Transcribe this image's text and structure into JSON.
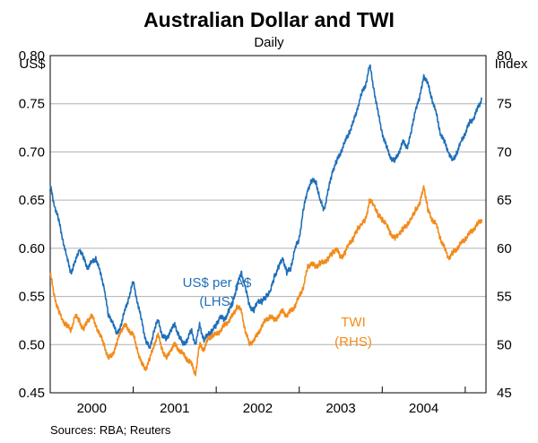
{
  "chart_data": {
    "type": "line",
    "title": "Australian Dollar and TWI",
    "subtitle": "Daily",
    "left_axis_label": "US$",
    "right_axis_label": "Index",
    "left_axis": {
      "ylim": [
        0.45,
        0.8
      ],
      "ticks": [
        "0.45",
        "0.50",
        "0.55",
        "0.60",
        "0.65",
        "0.70",
        "0.75",
        "0.80"
      ]
    },
    "right_axis": {
      "ylim": [
        45,
        80
      ],
      "ticks": [
        "45",
        "50",
        "55",
        "60",
        "65",
        "70",
        "75",
        "80"
      ]
    },
    "x_axis": {
      "range": [
        1999.5,
        2004.75
      ],
      "labels": [
        "2000",
        "2001",
        "2002",
        "2003",
        "2004"
      ],
      "label_positions": [
        2000,
        2001,
        2002,
        2003,
        2004
      ],
      "tick_positions": [
        2000.5,
        2001.5,
        2002.5,
        2003.5,
        2004.5
      ]
    },
    "grid": true,
    "series": [
      {
        "name": "US$ per A$",
        "axis": "left",
        "color": "#1f6fb8",
        "x": [
          1999.5,
          1999.55,
          1999.6,
          1999.65,
          1999.7,
          1999.75,
          1999.8,
          1999.85,
          1999.9,
          1999.95,
          2000.0,
          2000.05,
          2000.1,
          2000.15,
          2000.2,
          2000.25,
          2000.3,
          2000.35,
          2000.4,
          2000.45,
          2000.5,
          2000.55,
          2000.6,
          2000.65,
          2000.7,
          2000.75,
          2000.8,
          2000.85,
          2000.9,
          2000.95,
          2001.0,
          2001.05,
          2001.1,
          2001.15,
          2001.2,
          2001.25,
          2001.3,
          2001.35,
          2001.4,
          2001.45,
          2001.5,
          2001.55,
          2001.6,
          2001.65,
          2001.7,
          2001.75,
          2001.8,
          2001.85,
          2001.9,
          2001.95,
          2002.0,
          2002.05,
          2002.1,
          2002.15,
          2002.2,
          2002.25,
          2002.3,
          2002.35,
          2002.4,
          2002.45,
          2002.5,
          2002.55,
          2002.6,
          2002.65,
          2002.7,
          2002.75,
          2002.8,
          2002.85,
          2002.9,
          2002.95,
          2003.0,
          2003.05,
          2003.1,
          2003.15,
          2003.2,
          2003.25,
          2003.3,
          2003.35,
          2003.4,
          2003.45,
          2003.5,
          2003.55,
          2003.6,
          2003.65,
          2003.7,
          2003.75,
          2003.8,
          2003.85,
          2003.9,
          2003.95,
          2004.0,
          2004.05,
          2004.1,
          2004.15,
          2004.2,
          2004.25,
          2004.3,
          2004.35,
          2004.4,
          2004.45,
          2004.5,
          2004.55,
          2004.6,
          2004.65,
          2004.7
        ],
        "values": [
          0.665,
          0.645,
          0.63,
          0.61,
          0.59,
          0.575,
          0.585,
          0.6,
          0.59,
          0.58,
          0.585,
          0.59,
          0.575,
          0.56,
          0.53,
          0.525,
          0.51,
          0.52,
          0.535,
          0.55,
          0.565,
          0.545,
          0.525,
          0.505,
          0.495,
          0.515,
          0.525,
          0.51,
          0.505,
          0.515,
          0.52,
          0.51,
          0.5,
          0.505,
          0.515,
          0.5,
          0.52,
          0.505,
          0.51,
          0.515,
          0.52,
          0.53,
          0.525,
          0.535,
          0.545,
          0.56,
          0.575,
          0.56,
          0.54,
          0.535,
          0.545,
          0.545,
          0.55,
          0.555,
          0.57,
          0.58,
          0.59,
          0.575,
          0.58,
          0.6,
          0.61,
          0.64,
          0.66,
          0.67,
          0.67,
          0.65,
          0.64,
          0.66,
          0.68,
          0.69,
          0.7,
          0.71,
          0.72,
          0.73,
          0.745,
          0.76,
          0.77,
          0.79,
          0.765,
          0.74,
          0.72,
          0.705,
          0.695,
          0.69,
          0.7,
          0.71,
          0.705,
          0.72,
          0.745,
          0.755,
          0.78,
          0.77,
          0.755,
          0.74,
          0.72,
          0.71,
          0.7,
          0.69,
          0.7,
          0.71,
          0.72,
          0.73,
          0.735,
          0.745,
          0.755
        ]
      },
      {
        "name": "TWI",
        "axis": "right",
        "color": "#f28c1c",
        "x": [
          1999.5,
          1999.55,
          1999.6,
          1999.65,
          1999.7,
          1999.75,
          1999.8,
          1999.85,
          1999.9,
          1999.95,
          2000.0,
          2000.05,
          2000.1,
          2000.15,
          2000.2,
          2000.25,
          2000.3,
          2000.35,
          2000.4,
          2000.45,
          2000.5,
          2000.55,
          2000.6,
          2000.65,
          2000.7,
          2000.75,
          2000.8,
          2000.85,
          2000.9,
          2000.95,
          2001.0,
          2001.05,
          2001.1,
          2001.15,
          2001.2,
          2001.25,
          2001.3,
          2001.35,
          2001.4,
          2001.45,
          2001.5,
          2001.55,
          2001.6,
          2001.65,
          2001.7,
          2001.75,
          2001.8,
          2001.85,
          2001.9,
          2001.95,
          2002.0,
          2002.05,
          2002.1,
          2002.15,
          2002.2,
          2002.25,
          2002.3,
          2002.35,
          2002.4,
          2002.45,
          2002.5,
          2002.55,
          2002.6,
          2002.65,
          2002.7,
          2002.75,
          2002.8,
          2002.85,
          2002.9,
          2002.95,
          2003.0,
          2003.05,
          2003.1,
          2003.15,
          2003.2,
          2003.25,
          2003.3,
          2003.35,
          2003.4,
          2003.45,
          2003.5,
          2003.55,
          2003.6,
          2003.65,
          2003.7,
          2003.75,
          2003.8,
          2003.85,
          2003.9,
          2003.95,
          2004.0,
          2004.05,
          2004.1,
          2004.15,
          2004.2,
          2004.25,
          2004.3,
          2004.35,
          2004.4,
          2004.45,
          2004.5,
          2004.55,
          2004.6,
          2004.65,
          2004.7
        ],
        "values": [
          57.5,
          55.0,
          53.5,
          52.5,
          52.0,
          51.5,
          53.0,
          52.5,
          51.5,
          52.5,
          53.0,
          52.0,
          51.0,
          50.0,
          48.5,
          49.0,
          50.0,
          51.5,
          52.0,
          51.5,
          51.0,
          49.5,
          48.0,
          47.5,
          48.5,
          50.0,
          51.0,
          49.5,
          48.5,
          49.5,
          50.0,
          49.5,
          49.0,
          48.5,
          48.0,
          47.0,
          50.0,
          49.5,
          50.5,
          51.0,
          51.0,
          51.5,
          52.0,
          52.5,
          53.0,
          54.0,
          53.5,
          51.5,
          50.0,
          50.5,
          51.0,
          52.0,
          52.5,
          53.0,
          52.5,
          53.0,
          53.5,
          53.0,
          53.5,
          54.0,
          55.0,
          56.0,
          58.0,
          58.5,
          58.0,
          58.5,
          58.5,
          59.0,
          59.5,
          60.0,
          59.0,
          59.5,
          60.5,
          61.0,
          62.0,
          62.5,
          63.0,
          65.0,
          64.5,
          63.5,
          63.0,
          62.5,
          61.5,
          61.0,
          61.5,
          62.0,
          62.5,
          63.0,
          64.0,
          64.5,
          66.5,
          64.0,
          63.0,
          62.5,
          61.0,
          60.0,
          59.0,
          59.5,
          60.0,
          60.5,
          61.0,
          61.5,
          62.0,
          62.5,
          63.0
        ]
      }
    ],
    "annotations": [
      {
        "lines": [
          "US$ per A$",
          "(LHS)"
        ],
        "color": "#1f6fb8"
      },
      {
        "lines": [
          "TWI",
          "(RHS)"
        ],
        "color": "#f28c1c"
      }
    ],
    "source": "Sources: RBA; Reuters"
  }
}
